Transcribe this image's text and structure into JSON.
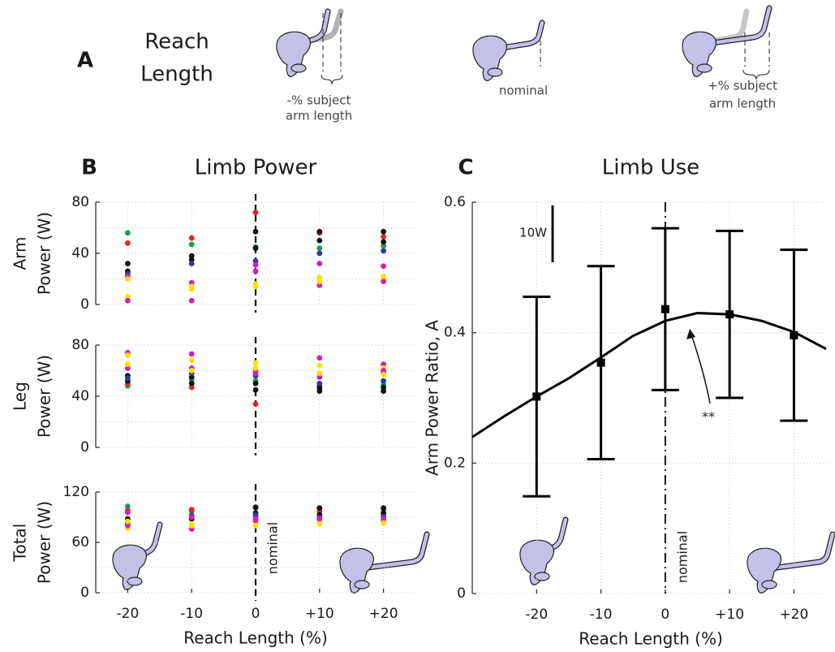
{
  "panel_a": {
    "label": "A",
    "heading": [
      "Reach",
      "Length"
    ],
    "captions": [
      [
        "-% subject",
        "arm length"
      ],
      [
        "nominal"
      ],
      [
        "+% subject",
        "arm length"
      ]
    ]
  },
  "chart_data": [
    {
      "type": "scatter",
      "panel_label": "B",
      "title": "Limb Power",
      "ylabel": [
        "Arm",
        "Power (W)"
      ],
      "x": [
        -20,
        -10,
        0,
        10,
        20
      ],
      "xlim": [
        -25,
        25
      ],
      "ylim": [
        0,
        80
      ],
      "yticks": [
        0,
        40,
        80
      ],
      "minor_yticks": [
        20,
        60
      ],
      "grid": true,
      "reference_x": 0,
      "series": [
        {
          "color": "#14a050",
          "values": [
            56,
            47,
            45,
            44,
            46
          ]
        },
        {
          "color": "#e8202a",
          "values": [
            48,
            52,
            72,
            56,
            53
          ]
        },
        {
          "color": "#111111",
          "values": [
            32,
            38,
            57,
            57,
            57
          ]
        },
        {
          "color": "#111111",
          "values": [
            26,
            35,
            44,
            50,
            49
          ]
        },
        {
          "color": "#2e3a9a",
          "values": [
            24,
            32,
            34,
            40,
            42
          ]
        },
        {
          "color": "#d020b0",
          "values": [
            22,
            17,
            31,
            32,
            30
          ]
        },
        {
          "color": "#ffe000",
          "values": [
            6,
            14,
            14,
            21,
            20
          ]
        },
        {
          "color": "#d020b0",
          "values": [
            3,
            3,
            26,
            15,
            18
          ]
        },
        {
          "color": "#ffe000",
          "values": [
            20,
            12,
            16,
            18,
            22
          ]
        }
      ]
    },
    {
      "type": "scatter",
      "ylabel": [
        "Leg",
        "Power (W)"
      ],
      "x": [
        -20,
        -10,
        0,
        10,
        20
      ],
      "xlim": [
        -25,
        25
      ],
      "ylim": [
        0,
        80
      ],
      "yticks": [
        0,
        40,
        80
      ],
      "minor_yticks": [
        20,
        60
      ],
      "grid": true,
      "reference_x": 0,
      "series": [
        {
          "color": "#14a050",
          "values": [
            48,
            53,
            52,
            48,
            49
          ]
        },
        {
          "color": "#e8202a",
          "values": [
            50,
            47,
            34,
            46,
            58
          ]
        },
        {
          "color": "#111111",
          "values": [
            56,
            50,
            45,
            44,
            44
          ]
        },
        {
          "color": "#111111",
          "values": [
            52,
            55,
            50,
            47,
            47
          ]
        },
        {
          "color": "#2e3a9a",
          "values": [
            54,
            58,
            56,
            50,
            52
          ]
        },
        {
          "color": "#d020b0",
          "values": [
            74,
            73,
            58,
            70,
            65
          ]
        },
        {
          "color": "#ffe000",
          "values": [
            72,
            68,
            66,
            64,
            62
          ]
        },
        {
          "color": "#d020b0",
          "values": [
            62,
            62,
            60,
            55,
            60
          ]
        },
        {
          "color": "#ffe000",
          "values": [
            65,
            60,
            62,
            58,
            57
          ]
        }
      ]
    },
    {
      "type": "scatter",
      "ylabel": [
        "Total",
        "Power (W)"
      ],
      "xlabel": "Reach Length (%)",
      "x": [
        -20,
        -10,
        0,
        10,
        20
      ],
      "xlim": [
        -25,
        25
      ],
      "ylim": [
        0,
        120
      ],
      "yticks": [
        0,
        60,
        120
      ],
      "minor_yticks": [
        30,
        90
      ],
      "xticks": [
        -20,
        -10,
        0,
        {
          "value": 10,
          "label": "+10"
        },
        {
          "value": 20,
          "label": "+20"
        }
      ],
      "grid": true,
      "reference_x": 0,
      "reference_label": "nominal",
      "series": [
        {
          "color": "#14a050",
          "values": [
            103,
            97,
            101,
            100,
            99
          ]
        },
        {
          "color": "#e8202a",
          "values": [
            98,
            99,
            91,
            97,
            94
          ]
        },
        {
          "color": "#111111",
          "values": [
            88,
            88,
            102,
            101,
            101
          ]
        },
        {
          "color": "#111111",
          "values": [
            84,
            90,
            95,
            93,
            95
          ]
        },
        {
          "color": "#2e3a9a",
          "values": [
            82,
            92,
            93,
            90,
            91
          ]
        },
        {
          "color": "#d020b0",
          "values": [
            96,
            90,
            88,
            87,
            86
          ]
        },
        {
          "color": "#ffe000",
          "values": [
            77,
            82,
            84,
            85,
            84
          ]
        },
        {
          "color": "#d020b0",
          "values": [
            80,
            76,
            86,
            88,
            88
          ]
        },
        {
          "color": "#ffe000",
          "values": [
            85,
            80,
            80,
            82,
            83
          ]
        }
      ]
    },
    {
      "type": "errorbar",
      "panel_label": "C",
      "title": "Limb Use",
      "ylabel": "Arm Power Ratio, A",
      "xlabel": "Reach Length (%)",
      "x": [
        -20,
        -10,
        0,
        10,
        20
      ],
      "values": [
        0.302,
        0.354,
        0.436,
        0.428,
        0.396
      ],
      "errors": [
        0.153,
        0.148,
        0.124,
        0.128,
        0.131
      ],
      "color": "#000000",
      "xlim": [
        -30,
        25.5
      ],
      "ylim": [
        0,
        0.6
      ],
      "yticks": [
        0,
        0.2,
        0.4,
        0.6
      ],
      "xticks": [
        -20,
        -10,
        0,
        {
          "value": 10,
          "label": "+10"
        },
        {
          "value": 20,
          "label": "+20"
        }
      ],
      "grid": true,
      "reference_x": 0,
      "reference_label": "nominal",
      "fit": {
        "x": [
          -30,
          -25,
          -20,
          -15,
          -10,
          -5,
          0,
          5,
          10,
          15,
          20,
          25
        ],
        "values": [
          0.24,
          0.272,
          0.302,
          0.33,
          0.362,
          0.395,
          0.418,
          0.43,
          0.428,
          0.418,
          0.401,
          0.375
        ]
      },
      "scale_bar_label": "10W",
      "significance": "**"
    }
  ]
}
